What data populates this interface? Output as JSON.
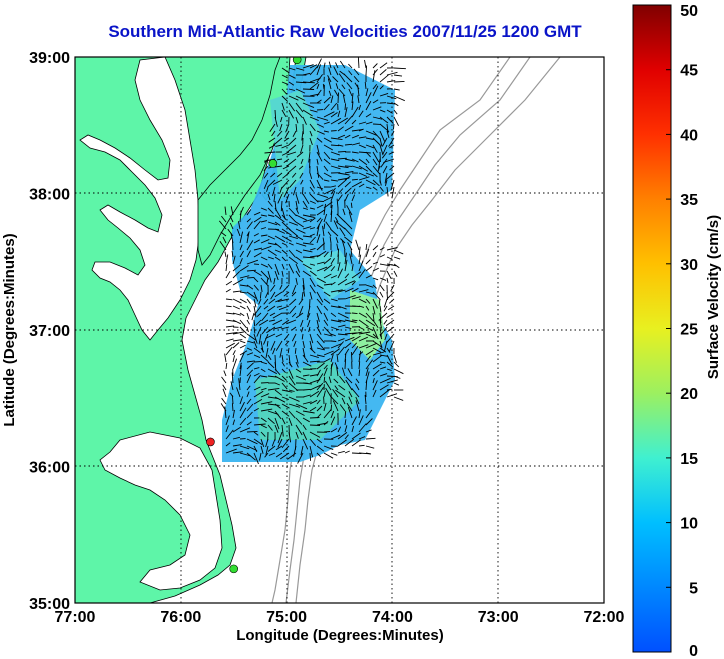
{
  "title": "Southern Mid-Atlantic Raw Velocities 2007/11/25 1200 GMT",
  "map": {
    "xlabel": "Longitude (Degrees:Minutes)",
    "ylabel": "Latitude (Degrees:Minutes)",
    "x_ticks": [
      "77:00",
      "76:00",
      "75:00",
      "74:00",
      "73:00",
      "72:00"
    ],
    "y_ticks": [
      "39:00",
      "38:00",
      "37:00",
      "36:00",
      "35:00"
    ],
    "lon_range": [
      -77,
      -72
    ],
    "lat_range": [
      35,
      39
    ],
    "land_color": "#5ef5a8",
    "grid": "dotted",
    "stations": [
      {
        "lon": -74.9,
        "lat": 38.98,
        "color": "#33dd33"
      },
      {
        "lon": -75.13,
        "lat": 38.22,
        "color": "#33dd33"
      },
      {
        "lon": -75.72,
        "lat": 36.18,
        "color": "#ee2222"
      },
      {
        "lon": -75.5,
        "lat": 35.25,
        "color": "#33dd33"
      }
    ]
  },
  "colorbar": {
    "label": "Surface Velocity (cm/s)",
    "ticks": [
      "0",
      "5",
      "10",
      "15",
      "20",
      "25",
      "30",
      "35",
      "40",
      "45",
      "50"
    ],
    "range": [
      0,
      50
    ]
  }
}
